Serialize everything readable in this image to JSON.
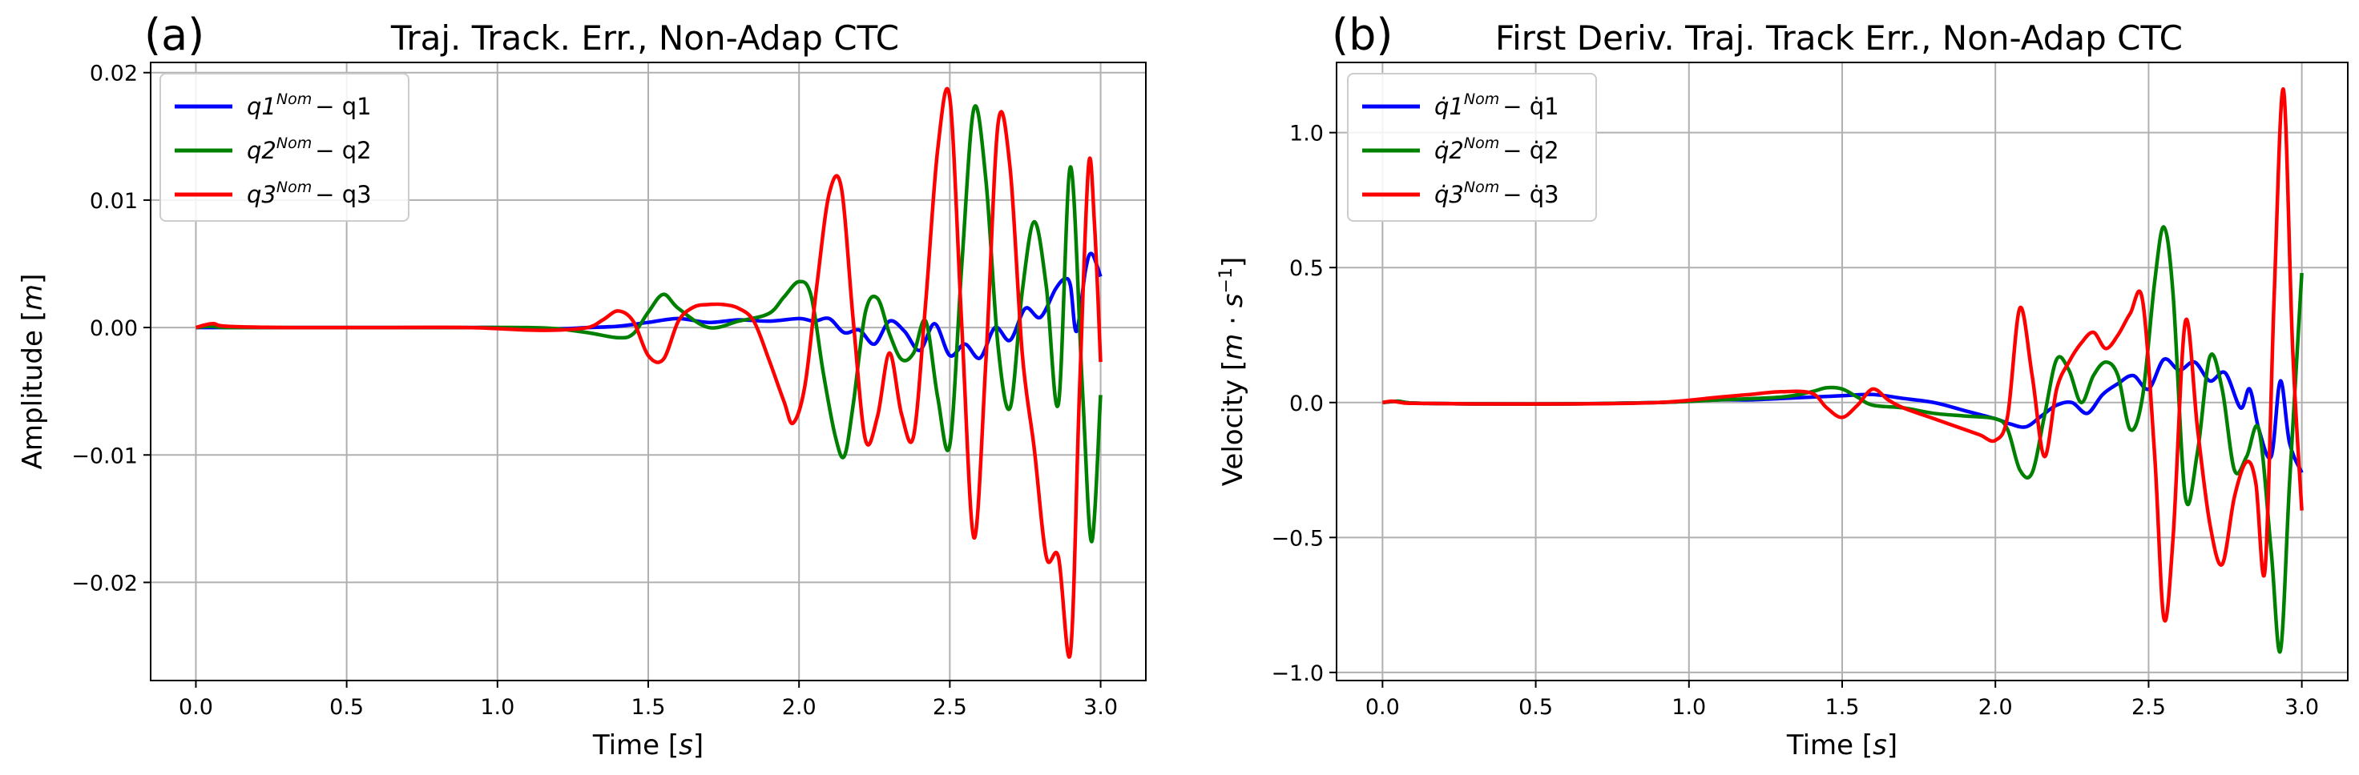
{
  "chart_data": [
    {
      "type": "line",
      "panel_label": "(a)",
      "title": "Traj. Track. Err., Non-Adap  CTC",
      "xlabel": "Time [s]",
      "ylabel": "Amplitude [m]",
      "xlim": [
        -0.15,
        3.15
      ],
      "ylim": [
        -0.0277,
        0.0208
      ],
      "xticks": [
        0.0,
        0.5,
        1.0,
        1.5,
        2.0,
        2.5,
        3.0
      ],
      "xtick_labels": [
        "0.0",
        "0.5",
        "1.0",
        "1.5",
        "2.0",
        "2.5",
        "3.0"
      ],
      "yticks": [
        -0.02,
        -0.01,
        0.0,
        0.01,
        0.02
      ],
      "ytick_labels": [
        "−0.02",
        "−0.01",
        "0.00",
        "0.01",
        "0.02"
      ],
      "grid": true,
      "legend_position": "top-left",
      "series": [
        {
          "name": "q1^Nom − q1",
          "legend_main": "q1",
          "legend_sup": "Nom",
          "legend_tail": "− q1",
          "color": "#0000ff",
          "x": [
            0.0,
            0.05,
            0.1,
            0.3,
            0.6,
            0.9,
            1.0,
            1.2,
            1.3,
            1.4,
            1.5,
            1.6,
            1.7,
            1.8,
            1.9,
            2.0,
            2.05,
            2.1,
            2.15,
            2.2,
            2.25,
            2.3,
            2.35,
            2.4,
            2.45,
            2.5,
            2.55,
            2.6,
            2.65,
            2.7,
            2.75,
            2.8,
            2.85,
            2.88,
            2.9,
            2.92,
            2.95,
            2.97,
            3.0
          ],
          "y": [
            0.0,
            0.0,
            0.0,
            0.0,
            0.0,
            0.0,
            0.0,
            -0.0001,
            0.0,
            0.0001,
            0.0004,
            0.0007,
            0.0004,
            0.0006,
            0.0005,
            0.0007,
            0.0005,
            0.0007,
            -0.0004,
            -0.0002,
            -0.0013,
            0.0005,
            -0.0003,
            -0.0018,
            0.0003,
            -0.0022,
            -0.0013,
            -0.0024,
            0.0,
            -0.001,
            0.0015,
            0.0008,
            0.003,
            0.0038,
            0.0033,
            -0.0003,
            0.0045,
            0.0058,
            0.004
          ]
        },
        {
          "name": "q2^Nom − q2",
          "legend_main": "q2",
          "legend_sup": "Nom",
          "legend_tail": "− q2",
          "color": "#008000",
          "x": [
            0.0,
            0.05,
            0.1,
            0.3,
            0.6,
            0.9,
            1.1,
            1.2,
            1.3,
            1.4,
            1.45,
            1.5,
            1.55,
            1.6,
            1.7,
            1.8,
            1.9,
            1.95,
            2.0,
            2.04,
            2.08,
            2.12,
            2.15,
            2.18,
            2.22,
            2.26,
            2.3,
            2.34,
            2.38,
            2.42,
            2.46,
            2.5,
            2.54,
            2.58,
            2.62,
            2.66,
            2.7,
            2.74,
            2.78,
            2.82,
            2.86,
            2.9,
            2.94,
            2.97,
            3.0
          ],
          "y": [
            0.0,
            0.0001,
            0.0,
            0.0,
            0.0,
            0.0,
            0.0,
            -0.0001,
            -0.0004,
            -0.0008,
            -0.0005,
            0.0012,
            0.0026,
            0.0015,
            0.0,
            0.0005,
            0.0011,
            0.0024,
            0.0036,
            0.0025,
            -0.0035,
            -0.0085,
            -0.0101,
            -0.006,
            0.0012,
            0.0023,
            -0.0005,
            -0.0025,
            -0.002,
            0.0005,
            -0.0055,
            -0.0092,
            0.005,
            0.0172,
            0.0115,
            -0.0015,
            -0.0063,
            0.0028,
            0.0083,
            0.0032,
            -0.006,
            0.0126,
            -0.005,
            -0.0168,
            -0.0053
          ]
        },
        {
          "name": "q3^Nom − q3",
          "legend_main": "q3",
          "legend_sup": "Nom",
          "legend_tail": "− q3",
          "color": "#ff0000",
          "x": [
            0.0,
            0.03,
            0.06,
            0.1,
            0.3,
            0.6,
            0.9,
            1.1,
            1.2,
            1.3,
            1.35,
            1.4,
            1.45,
            1.5,
            1.55,
            1.6,
            1.65,
            1.7,
            1.75,
            1.8,
            1.85,
            1.9,
            1.95,
            1.98,
            2.02,
            2.06,
            2.1,
            2.14,
            2.18,
            2.22,
            2.26,
            2.3,
            2.34,
            2.38,
            2.42,
            2.46,
            2.5,
            2.54,
            2.58,
            2.62,
            2.66,
            2.7,
            2.74,
            2.78,
            2.82,
            2.86,
            2.9,
            2.93,
            2.96,
            2.98,
            3.0
          ],
          "y": [
            0.0,
            0.0002,
            0.0003,
            0.0001,
            0.0,
            0.0,
            0.0,
            -0.0002,
            -0.0002,
            0.0,
            0.0006,
            0.0013,
            0.0005,
            -0.0022,
            -0.0025,
            0.0005,
            0.0016,
            0.0018,
            0.0018,
            0.0015,
            0.0005,
            -0.0025,
            -0.0058,
            -0.0075,
            -0.0045,
            0.0035,
            0.0105,
            0.011,
            0.0005,
            -0.0088,
            -0.007,
            -0.002,
            -0.0068,
            -0.0085,
            0.002,
            0.014,
            0.018,
            0.0,
            -0.0165,
            -0.0025,
            0.016,
            0.0125,
            -0.002,
            -0.0095,
            -0.018,
            -0.018,
            -0.0255,
            -0.005,
            0.0127,
            0.008,
            -0.0027
          ]
        }
      ]
    },
    {
      "type": "line",
      "panel_label": "(b)",
      "title": "First Deriv. Traj. Track Err., Non-Adap  CTC",
      "xlabel": "Time [s]",
      "ylabel": "Velocity [m·s⁻¹]",
      "xlim": [
        -0.15,
        3.15
      ],
      "ylim": [
        -1.03,
        1.26
      ],
      "xticks": [
        0.0,
        0.5,
        1.0,
        1.5,
        2.0,
        2.5,
        3.0
      ],
      "xtick_labels": [
        "0.0",
        "0.5",
        "1.0",
        "1.5",
        "2.0",
        "2.5",
        "3.0"
      ],
      "yticks": [
        -1.0,
        -0.5,
        0.0,
        0.5,
        1.0
      ],
      "ytick_labels": [
        "−1.0",
        "−0.5",
        "0.0",
        "0.5",
        "1.0"
      ],
      "grid": true,
      "legend_position": "top-left",
      "series": [
        {
          "name": "q̇1^Nom − q̇1",
          "legend_main": "q̇1",
          "legend_sup": "Nom",
          "legend_tail": "− q̇1",
          "color": "#0000ff",
          "x": [
            0.0,
            0.05,
            0.1,
            0.3,
            0.6,
            0.9,
            1.1,
            1.2,
            1.3,
            1.4,
            1.5,
            1.6,
            1.7,
            1.8,
            1.9,
            2.0,
            2.05,
            2.1,
            2.15,
            2.2,
            2.25,
            2.3,
            2.35,
            2.4,
            2.45,
            2.5,
            2.55,
            2.6,
            2.65,
            2.7,
            2.75,
            2.8,
            2.83,
            2.86,
            2.9,
            2.93,
            2.96,
            3.0
          ],
          "y": [
            0.0,
            0.005,
            -0.002,
            -0.005,
            -0.005,
            0.0,
            0.01,
            0.01,
            0.015,
            0.02,
            0.025,
            0.03,
            0.015,
            0.0,
            -0.03,
            -0.06,
            -0.08,
            -0.09,
            -0.05,
            -0.01,
            0.0,
            -0.04,
            0.03,
            0.07,
            0.1,
            0.05,
            0.16,
            0.12,
            0.15,
            0.08,
            0.11,
            -0.02,
            0.05,
            -0.1,
            -0.2,
            0.08,
            -0.15,
            -0.26
          ]
        },
        {
          "name": "q̇2^Nom − q̇2",
          "legend_main": "q̇2",
          "legend_sup": "Nom",
          "legend_tail": "− q̇2",
          "color": "#008000",
          "x": [
            0.0,
            0.05,
            0.1,
            0.3,
            0.6,
            0.9,
            1.1,
            1.3,
            1.4,
            1.45,
            1.5,
            1.55,
            1.6,
            1.7,
            1.8,
            1.9,
            2.0,
            2.04,
            2.08,
            2.12,
            2.16,
            2.2,
            2.24,
            2.28,
            2.32,
            2.36,
            2.4,
            2.44,
            2.48,
            2.52,
            2.55,
            2.58,
            2.62,
            2.66,
            2.7,
            2.74,
            2.78,
            2.82,
            2.86,
            2.9,
            2.93,
            2.96,
            3.0
          ],
          "y": [
            0.0,
            0.005,
            -0.002,
            -0.005,
            -0.005,
            0.0,
            0.01,
            0.02,
            0.04,
            0.055,
            0.05,
            0.02,
            -0.01,
            -0.02,
            -0.04,
            -0.05,
            -0.06,
            -0.1,
            -0.25,
            -0.26,
            -0.05,
            0.16,
            0.12,
            0.0,
            0.1,
            0.15,
            0.1,
            -0.1,
            0.02,
            0.45,
            0.65,
            0.4,
            -0.35,
            -0.18,
            0.17,
            0.05,
            -0.25,
            -0.2,
            -0.1,
            -0.55,
            -0.92,
            -0.3,
            0.48
          ]
        },
        {
          "name": "q̇3^Nom − q̇3",
          "legend_main": "q̇3",
          "legend_sup": "Nom",
          "legend_tail": "− q̇3",
          "color": "#ff0000",
          "x": [
            0.0,
            0.03,
            0.06,
            0.1,
            0.3,
            0.6,
            0.9,
            1.1,
            1.2,
            1.3,
            1.4,
            1.45,
            1.5,
            1.55,
            1.6,
            1.65,
            1.7,
            1.8,
            1.9,
            1.95,
            2.0,
            2.04,
            2.08,
            2.12,
            2.16,
            2.2,
            2.24,
            2.28,
            2.32,
            2.36,
            2.4,
            2.44,
            2.48,
            2.52,
            2.55,
            2.58,
            2.62,
            2.66,
            2.7,
            2.74,
            2.78,
            2.82,
            2.85,
            2.88,
            2.91,
            2.94,
            2.97,
            3.0
          ],
          "y": [
            0.0,
            0.005,
            0.0,
            -0.003,
            -0.005,
            -0.005,
            0.0,
            0.02,
            0.03,
            0.04,
            0.035,
            -0.02,
            -0.055,
            -0.01,
            0.05,
            0.01,
            -0.02,
            -0.06,
            -0.1,
            -0.12,
            -0.14,
            -0.05,
            0.35,
            0.1,
            -0.2,
            0.05,
            0.15,
            0.22,
            0.26,
            0.2,
            0.25,
            0.33,
            0.38,
            -0.2,
            -0.8,
            -0.5,
            0.3,
            -0.1,
            -0.45,
            -0.6,
            -0.35,
            -0.22,
            -0.3,
            -0.62,
            0.4,
            1.16,
            0.2,
            -0.4
          ]
        }
      ]
    }
  ]
}
